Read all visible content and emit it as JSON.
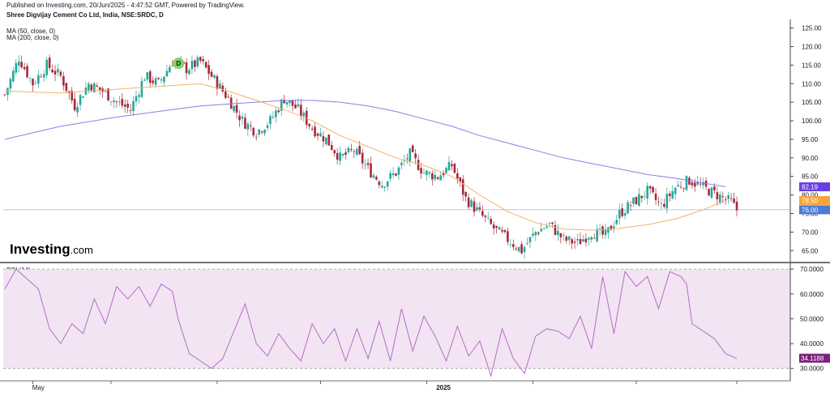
{
  "header": {
    "published": "Published on Investing.com, 20/Jun/2025 - 4:47:52 GMT, Powered by TradingView.",
    "symbol": "Shree Digvijay Cement Co Ltd, India, NSE:SRDC, D",
    "ma50": "MA (50, close, 0)",
    "ma200": "MA (200, close, 0)"
  },
  "logo": {
    "text": "Investing",
    "suffix": ".com"
  },
  "rsi_title": "RSI (14)",
  "event_marker": "D",
  "colors": {
    "up": "#26a69a",
    "down": "#a52a3a",
    "ma50": "#f6b26b",
    "ma200": "#8c7ee8",
    "rsi": "#b56bc8",
    "rsi_band": "#f3e4f3",
    "last": "#4c7bd8"
  },
  "chart_data": [
    {
      "type": "candlestick",
      "title": "Shree Digvijay Cement Co Ltd, India, NSE:SRDC, D",
      "ylim": [
        62,
        126
      ],
      "y_ticks": [
        65,
        70,
        75,
        80,
        85,
        90,
        95,
        100,
        105,
        110,
        115,
        120,
        125
      ],
      "y_tick_labels": [
        "65.00",
        "70.00",
        "75.00",
        "80.00",
        "85.00",
        "90.00",
        "95.00",
        "100.00",
        "105.00",
        "110.00",
        "115.00",
        "120.00",
        "125.00"
      ],
      "x_labels": [
        "May",
        "2025"
      ],
      "close_points": [
        [
          0,
          107
        ],
        [
          5,
          117
        ],
        [
          10,
          110
        ],
        [
          15,
          115
        ],
        [
          20,
          112
        ],
        [
          25,
          104
        ],
        [
          30,
          110
        ],
        [
          35,
          108
        ],
        [
          40,
          105
        ],
        [
          45,
          103
        ],
        [
          50,
          112
        ],
        [
          55,
          110
        ],
        [
          60,
          116
        ],
        [
          65,
          114
        ],
        [
          70,
          116
        ],
        [
          75,
          111
        ],
        [
          80,
          106
        ],
        [
          85,
          100
        ],
        [
          90,
          97
        ],
        [
          95,
          100
        ],
        [
          100,
          106
        ],
        [
          105,
          103
        ],
        [
          110,
          98
        ],
        [
          115,
          95
        ],
        [
          120,
          90
        ],
        [
          125,
          92
        ],
        [
          130,
          87
        ],
        [
          135,
          83
        ],
        [
          140,
          86
        ],
        [
          145,
          91
        ],
        [
          150,
          86
        ],
        [
          155,
          85
        ],
        [
          160,
          88
        ],
        [
          165,
          79
        ],
        [
          170,
          75
        ],
        [
          175,
          71
        ],
        [
          180,
          68
        ],
        [
          185,
          65
        ],
        [
          190,
          70
        ],
        [
          195,
          72
        ],
        [
          200,
          68
        ],
        [
          205,
          67
        ],
        [
          210,
          70
        ],
        [
          215,
          69
        ],
        [
          220,
          75
        ],
        [
          225,
          78
        ],
        [
          230,
          81
        ],
        [
          235,
          77
        ],
        [
          240,
          82
        ],
        [
          245,
          84
        ],
        [
          250,
          82
        ],
        [
          255,
          80
        ],
        [
          260,
          78
        ],
        [
          262,
          76
        ]
      ],
      "series": [
        {
          "name": "MA (50, close, 0)",
          "points": [
            [
              0,
              108
            ],
            [
              20,
              107.5
            ],
            [
              40,
              108.5
            ],
            [
              60,
              109.5
            ],
            [
              70,
              110
            ],
            [
              80,
              108
            ],
            [
              90,
              105.5
            ],
            [
              100,
              103
            ],
            [
              110,
              100
            ],
            [
              120,
              96
            ],
            [
              130,
              93
            ],
            [
              140,
              90
            ],
            [
              150,
              88
            ],
            [
              160,
              85
            ],
            [
              170,
              80
            ],
            [
              180,
              75.5
            ],
            [
              190,
              72.5
            ],
            [
              200,
              70.8
            ],
            [
              210,
              70.5
            ],
            [
              220,
              71
            ],
            [
              230,
              72
            ],
            [
              240,
              73.5
            ],
            [
              250,
              76
            ],
            [
              258,
              78.5
            ]
          ]
        },
        {
          "name": "MA (200, close, 0)",
          "points": [
            [
              0,
              95
            ],
            [
              20,
              98.5
            ],
            [
              40,
              101
            ],
            [
              60,
              103
            ],
            [
              70,
              104
            ],
            [
              80,
              104.5
            ],
            [
              90,
              105
            ],
            [
              100,
              105.5
            ],
            [
              110,
              105.5
            ],
            [
              120,
              105
            ],
            [
              130,
              104
            ],
            [
              140,
              102.5
            ],
            [
              150,
              100.5
            ],
            [
              160,
              98.5
            ],
            [
              170,
              96
            ],
            [
              180,
              94
            ],
            [
              190,
              92
            ],
            [
              200,
              90
            ],
            [
              210,
              88.5
            ],
            [
              220,
              87
            ],
            [
              230,
              85.5
            ],
            [
              240,
              84.5
            ],
            [
              250,
              83.2
            ],
            [
              258,
              82.2
            ]
          ]
        }
      ],
      "last_values": {
        "ma200": "82.19",
        "ma50": "78.50",
        "close": "76.00"
      },
      "event_marker_at": {
        "x": 61,
        "y": 115.5
      }
    },
    {
      "type": "line",
      "title": "RSI (14)",
      "ylim": [
        25,
        72
      ],
      "y_ticks": [
        30,
        40,
        50,
        60,
        70
      ],
      "y_tick_labels": [
        "30.0000",
        "40.0000",
        "50.0000",
        "60.0000",
        "70.0000"
      ],
      "bands": [
        30,
        70
      ],
      "last_value": "34.1188",
      "series": [
        {
          "name": "RSI (14)",
          "points": [
            [
              0,
              62
            ],
            [
              4,
              70
            ],
            [
              8,
              66
            ],
            [
              12,
              62
            ],
            [
              16,
              46
            ],
            [
              20,
              40
            ],
            [
              24,
              48
            ],
            [
              28,
              44
            ],
            [
              32,
              58
            ],
            [
              36,
              48
            ],
            [
              40,
              63
            ],
            [
              44,
              58
            ],
            [
              48,
              63
            ],
            [
              52,
              55
            ],
            [
              56,
              64
            ],
            [
              60,
              61
            ],
            [
              62,
              50
            ],
            [
              66,
              36
            ],
            [
              70,
              33
            ],
            [
              74,
              30
            ],
            [
              78,
              34
            ],
            [
              82,
              45
            ],
            [
              86,
              56
            ],
            [
              90,
              40
            ],
            [
              94,
              35
            ],
            [
              98,
              44
            ],
            [
              102,
              38
            ],
            [
              106,
              33
            ],
            [
              110,
              48
            ],
            [
              114,
              40
            ],
            [
              118,
              46
            ],
            [
              122,
              33
            ],
            [
              126,
              46
            ],
            [
              130,
              34
            ],
            [
              134,
              49
            ],
            [
              138,
              33
            ],
            [
              142,
              54
            ],
            [
              146,
              37
            ],
            [
              150,
              51
            ],
            [
              154,
              43
            ],
            [
              158,
              33
            ],
            [
              162,
              47
            ],
            [
              166,
              35
            ],
            [
              170,
              41
            ],
            [
              174,
              27
            ],
            [
              178,
              46
            ],
            [
              182,
              34
            ],
            [
              186,
              28
            ],
            [
              190,
              43
            ],
            [
              194,
              46
            ],
            [
              198,
              45
            ],
            [
              202,
              42
            ],
            [
              206,
              51
            ],
            [
              210,
              38
            ],
            [
              214,
              67
            ],
            [
              218,
              44
            ],
            [
              222,
              69
            ],
            [
              226,
              63
            ],
            [
              230,
              67
            ],
            [
              234,
              54
            ],
            [
              238,
              69
            ],
            [
              242,
              67
            ],
            [
              244,
              64
            ],
            [
              246,
              48
            ],
            [
              250,
              45
            ],
            [
              254,
              42
            ],
            [
              258,
              36
            ],
            [
              262,
              34
            ]
          ]
        }
      ]
    }
  ]
}
